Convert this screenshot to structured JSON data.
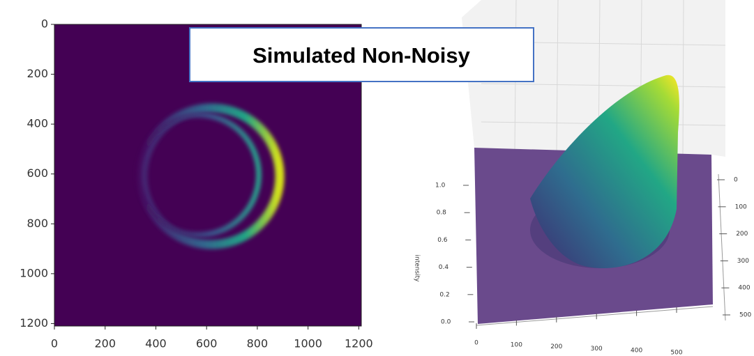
{
  "title": "Simulated Non-Noisy",
  "chart_data": [
    {
      "type": "heatmap",
      "xlim": [
        0,
        1210
      ],
      "ylim": [
        1210,
        0
      ],
      "xticks": [
        0,
        200,
        400,
        600,
        800,
        1000,
        1200
      ],
      "yticks": [
        0,
        200,
        400,
        600,
        800,
        1000,
        1200
      ]
    },
    {
      "type": "surface3d",
      "zlabel": "intensity",
      "zlim": [
        0,
        1
      ],
      "zticks": [
        {
          "value": 0,
          "label": "0.0"
        },
        {
          "value": 0.2,
          "label": "0.2"
        },
        {
          "value": 0.4,
          "label": "0.4"
        },
        {
          "value": 0.6,
          "label": "0.6"
        },
        {
          "value": 0.8,
          "label": "0.8"
        },
        {
          "value": 1,
          "label": "1.0"
        }
      ],
      "xlim": [
        0,
        500
      ],
      "xticks": [
        0,
        100,
        200,
        300,
        400,
        500
      ],
      "ylim": [
        0,
        500
      ],
      "yticks": [
        0,
        100,
        200,
        300,
        400,
        500
      ]
    }
  ]
}
